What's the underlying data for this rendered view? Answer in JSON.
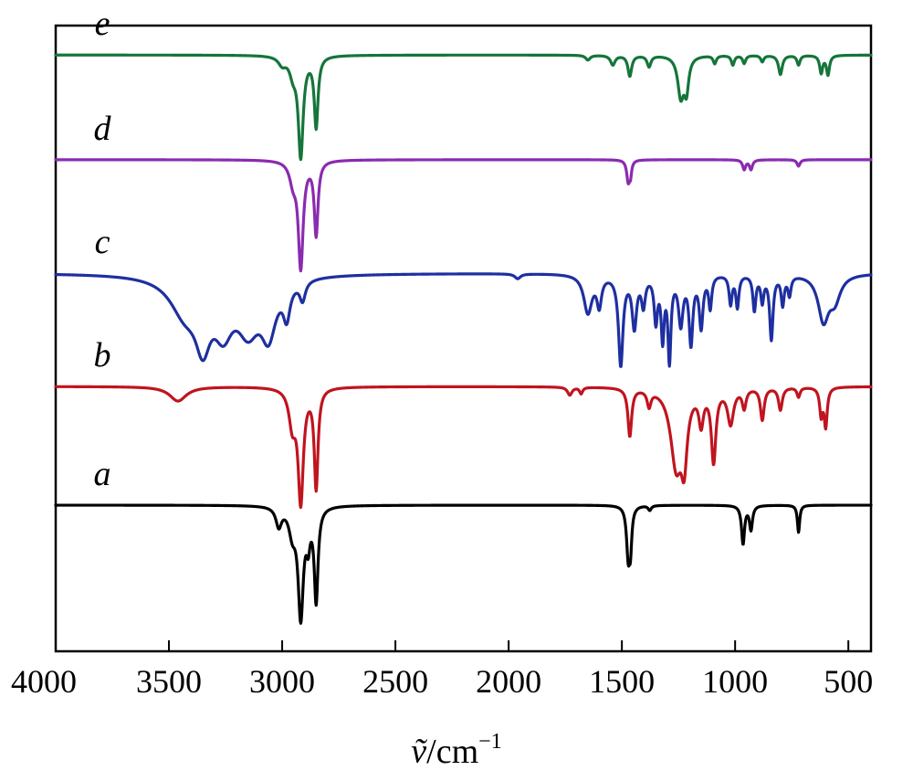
{
  "chart_data": {
    "type": "line",
    "title": "",
    "xlabel_symbol": "ṽ",
    "xlabel_unit": "/cm",
    "xlabel_exponent": "−1",
    "ylabel": "",
    "xlim": [
      4000,
      400
    ],
    "x_reversed": true,
    "x_ticks": [
      4000,
      3500,
      3000,
      2500,
      2000,
      1500,
      1000,
      500
    ],
    "x_tick_labels": [
      "4000",
      "3500",
      "3000",
      "2500",
      "2000",
      "1500",
      "1000",
      "500"
    ],
    "grid": false,
    "legend": "inline labels at left",
    "series": [
      {
        "name": "a",
        "color": "#000000",
        "baseline": 0.0,
        "bands": [
          [
            3015,
            0.12,
            15
          ],
          [
            2955,
            0.15,
            18
          ],
          [
            2918,
            0.68,
            14
          ],
          [
            2885,
            0.18,
            10
          ],
          [
            2850,
            0.58,
            10
          ],
          [
            1472,
            0.3,
            9
          ],
          [
            1462,
            0.22,
            7
          ],
          [
            1377,
            0.03,
            8
          ],
          [
            965,
            0.24,
            8
          ],
          [
            930,
            0.15,
            8
          ],
          [
            720,
            0.17,
            6
          ]
        ]
      },
      {
        "name": "b",
        "color": "#c0141e",
        "baseline": 0.68,
        "bands": [
          [
            3460,
            0.09,
            45
          ],
          [
            2955,
            0.22,
            18
          ],
          [
            2918,
            0.7,
            14
          ],
          [
            2850,
            0.62,
            10
          ],
          [
            1730,
            0.05,
            12
          ],
          [
            1680,
            0.04,
            8
          ],
          [
            1465,
            0.3,
            10
          ],
          [
            1380,
            0.1,
            10
          ],
          [
            1260,
            0.48,
            30
          ],
          [
            1225,
            0.38,
            16
          ],
          [
            1150,
            0.2,
            12
          ],
          [
            1095,
            0.45,
            12
          ],
          [
            1020,
            0.22,
            16
          ],
          [
            960,
            0.12,
            10
          ],
          [
            880,
            0.2,
            10
          ],
          [
            800,
            0.14,
            10
          ],
          [
            720,
            0.06,
            8
          ],
          [
            620,
            0.17,
            8
          ],
          [
            600,
            0.24,
            8
          ]
        ]
      },
      {
        "name": "c",
        "color": "#1e2fa0",
        "baseline": 1.33,
        "bands": [
          [
            3430,
            0.22,
            80
          ],
          [
            3350,
            0.34,
            40
          ],
          [
            3260,
            0.28,
            50
          ],
          [
            3150,
            0.3,
            60
          ],
          [
            3060,
            0.32,
            40
          ],
          [
            2980,
            0.2,
            18
          ],
          [
            2910,
            0.12,
            15
          ],
          [
            1960,
            0.03,
            15
          ],
          [
            1650,
            0.24,
            22
          ],
          [
            1600,
            0.18,
            12
          ],
          [
            1505,
            0.56,
            12
          ],
          [
            1445,
            0.32,
            12
          ],
          [
            1405,
            0.18,
            10
          ],
          [
            1350,
            0.28,
            9
          ],
          [
            1320,
            0.38,
            8
          ],
          [
            1290,
            0.52,
            8
          ],
          [
            1240,
            0.3,
            12
          ],
          [
            1195,
            0.42,
            10
          ],
          [
            1150,
            0.32,
            10
          ],
          [
            1110,
            0.2,
            8
          ],
          [
            1020,
            0.18,
            8
          ],
          [
            990,
            0.2,
            8
          ],
          [
            915,
            0.22,
            8
          ],
          [
            880,
            0.16,
            8
          ],
          [
            840,
            0.4,
            9
          ],
          [
            790,
            0.18,
            8
          ],
          [
            760,
            0.12,
            8
          ],
          [
            610,
            0.28,
            28
          ],
          [
            560,
            0.15,
            30
          ]
        ]
      },
      {
        "name": "d",
        "color": "#8a2bb0",
        "baseline": 1.98,
        "bands": [
          [
            2952,
            0.12,
            18
          ],
          [
            2918,
            0.66,
            13
          ],
          [
            2850,
            0.46,
            10
          ],
          [
            1472,
            0.13,
            8
          ],
          [
            1462,
            0.08,
            6
          ],
          [
            960,
            0.06,
            8
          ],
          [
            930,
            0.06,
            8
          ],
          [
            720,
            0.04,
            8
          ]
        ]
      },
      {
        "name": "e",
        "color": "#15753a",
        "baseline": 2.58,
        "bands": [
          [
            3000,
            0.05,
            20
          ],
          [
            2952,
            0.1,
            18
          ],
          [
            2918,
            0.62,
            13
          ],
          [
            2850,
            0.44,
            10
          ],
          [
            1650,
            0.03,
            12
          ],
          [
            1540,
            0.06,
            12
          ],
          [
            1465,
            0.13,
            10
          ],
          [
            1380,
            0.07,
            10
          ],
          [
            1240,
            0.25,
            16
          ],
          [
            1215,
            0.2,
            12
          ],
          [
            1090,
            0.05,
            8
          ],
          [
            1010,
            0.06,
            8
          ],
          [
            960,
            0.05,
            8
          ],
          [
            880,
            0.04,
            8
          ],
          [
            800,
            0.12,
            10
          ],
          [
            720,
            0.06,
            8
          ],
          [
            620,
            0.11,
            8
          ],
          [
            590,
            0.12,
            8
          ]
        ]
      }
    ]
  }
}
